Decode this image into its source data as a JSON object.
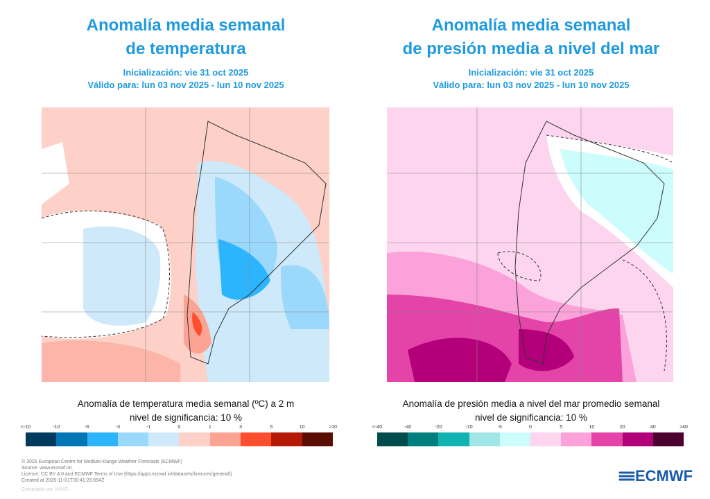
{
  "left": {
    "title_line1": "Anomalía media semanal",
    "title_line2": "de temperatura",
    "init": "Inicialización: vie 31 oct 2025",
    "valid": "Válido para: lun 03 nov 2025 - lun 10 nov 2025",
    "caption": "Anomalía de temperatura media semanal (ºC) a 2 m",
    "significance": "nivel de significancia: 10 %",
    "legend_ticks": [
      "<-10",
      "-10",
      "-6",
      "-3",
      "-1",
      "0",
      "1",
      "3",
      "6",
      "10",
      ">10"
    ],
    "legend_colors": [
      "#003a5c",
      "#0076b4",
      "#2cb5fc",
      "#9ad9fb",
      "#cde9fa",
      "#fdd0c8",
      "#fca493",
      "#fe4e2e",
      "#b41a05",
      "#5a0d03"
    ]
  },
  "right": {
    "title_line1": "Anomalía media semanal",
    "title_line2": "de presión media a nivel del mar",
    "init": "Inicialización: vie 31 oct 2025",
    "valid": "Válido para: lun 03 nov 2025 - lun 10 nov 2025",
    "caption": "Anomalía de presión media a nivel del mar promedio semanal",
    "significance": "nivel de significancia: 10 %",
    "legend_ticks": [
      "<-40",
      "-40",
      "-20",
      "-10",
      "-5",
      "0",
      "5",
      "10",
      "20",
      "40",
      ">40"
    ],
    "legend_colors": [
      "#004b4b",
      "#007f7f",
      "#10b2b2",
      "#a0e6e6",
      "#ccfcfc",
      "#fdd5ef",
      "#fca2db",
      "#e444a8",
      "#b3007a",
      "#4c0030"
    ]
  },
  "footer": {
    "lines": [
      "© 2025 European Centre for Medium-Range Weather Forecasts (ECMWF)",
      "Source: www.ecmwf.int",
      "Licence: CC BY 4.0 and ECMWF Terms of Use (https://apps.ecmwf.int/datasets/licences/general/)",
      "Created at 2025-11-01T00:41:28.694Z"
    ],
    "compiled": "Compilado por VVUG",
    "logo": "ECMWF"
  }
}
